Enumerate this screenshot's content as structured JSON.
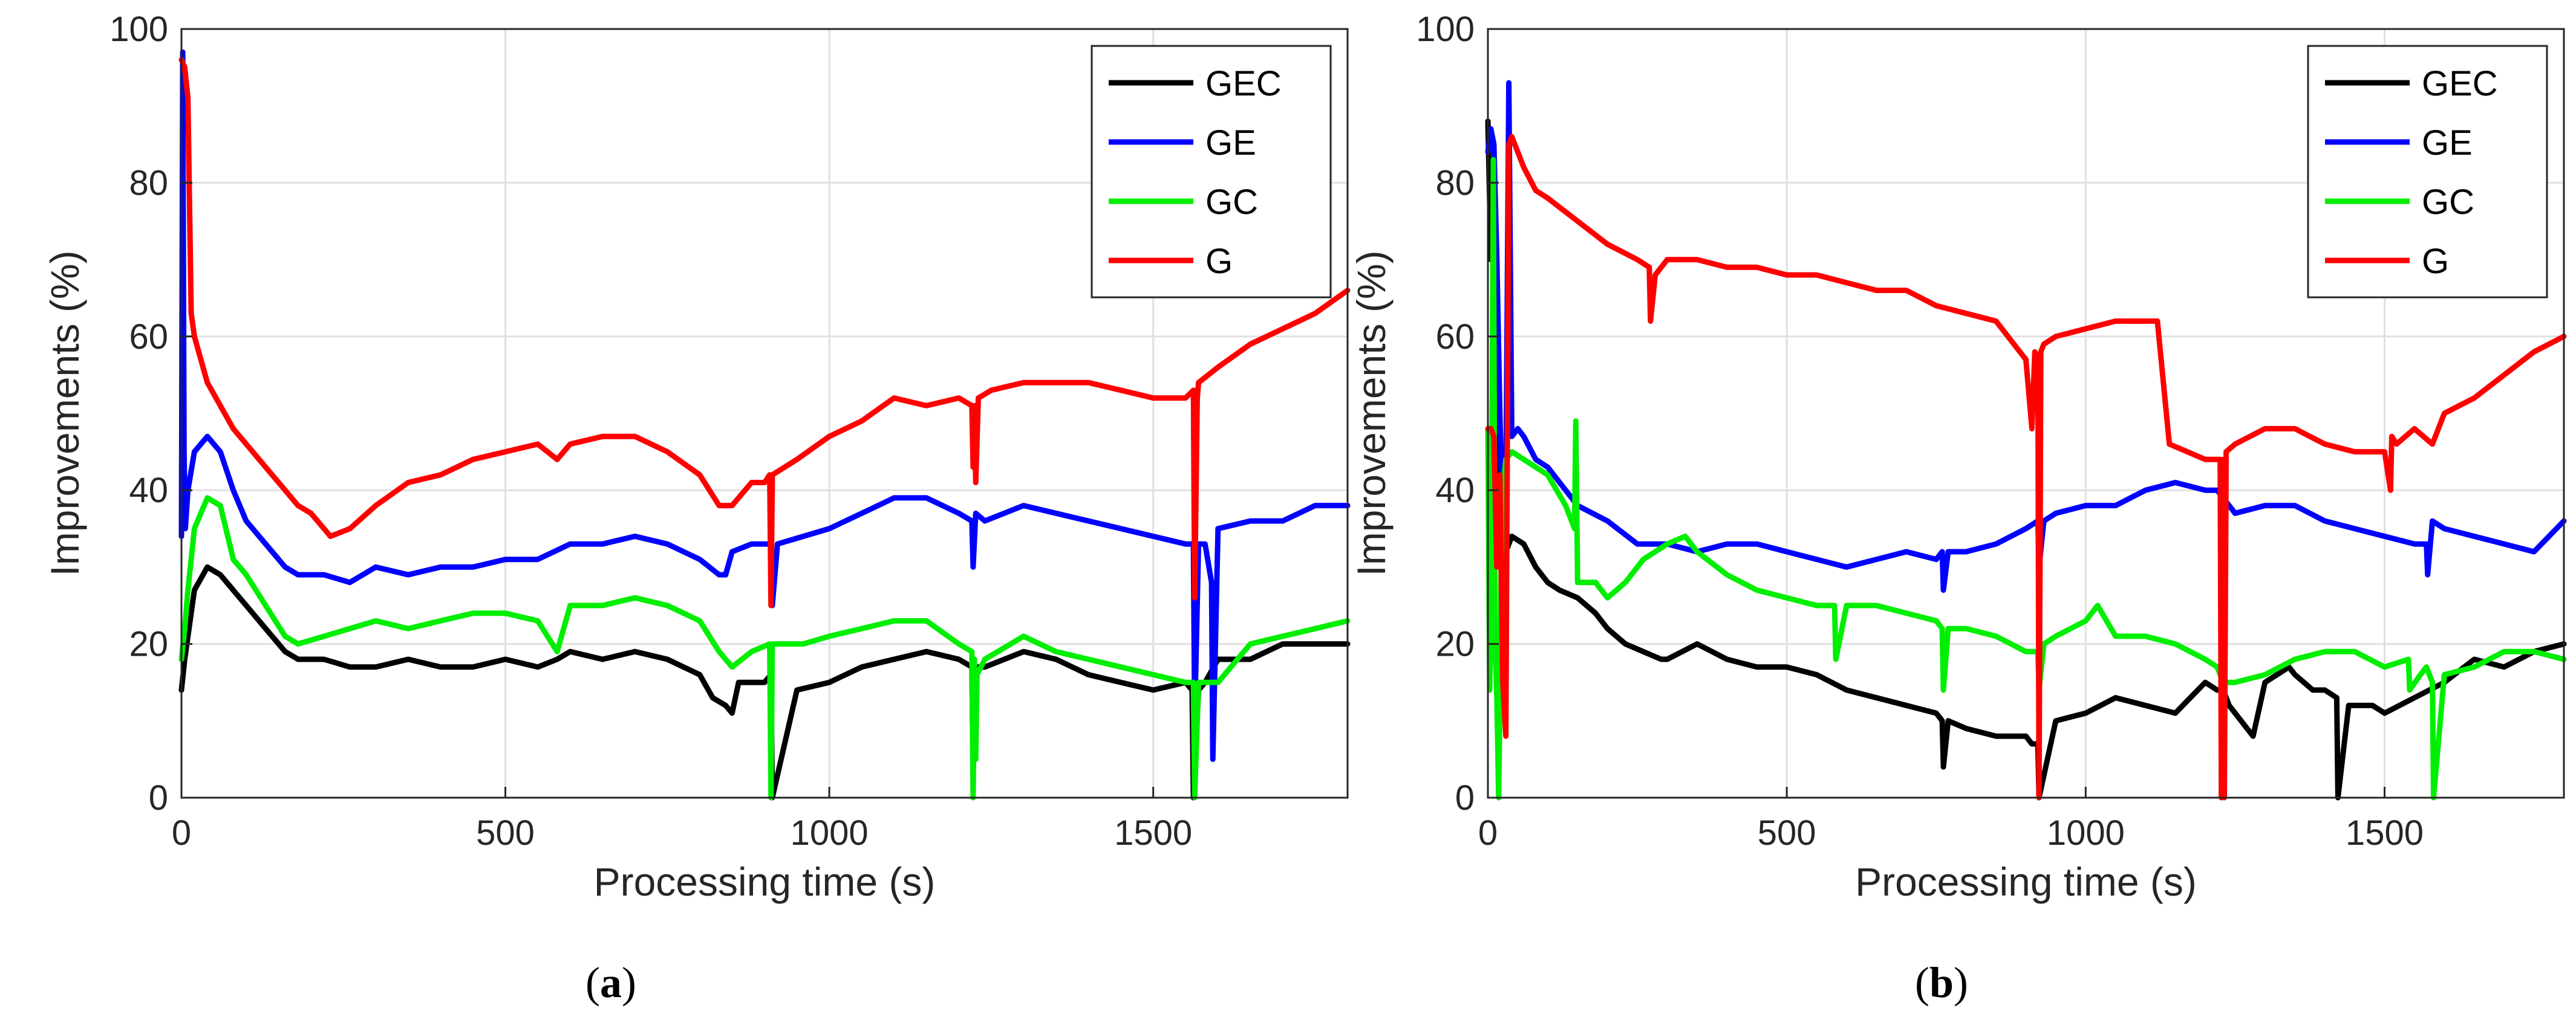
{
  "figure": {
    "captions": [
      {
        "open": "(",
        "letter": "a",
        "close": ")"
      },
      {
        "open": "(",
        "letter": "b",
        "close": ")"
      }
    ]
  },
  "colors": {
    "GEC": "#000000",
    "GE": "#0000ff",
    "GC": "#00ee00",
    "G": "#ff0000",
    "grid": "#e0e0e0",
    "axis": "#262626"
  },
  "chart_data": [
    {
      "type": "line",
      "title": "",
      "xlabel": "Processing time (s)",
      "ylabel": "Improvements (%)",
      "xlim": [
        0,
        1800
      ],
      "ylim": [
        0,
        100
      ],
      "xticks": [
        0,
        500,
        1000,
        1500
      ],
      "yticks": [
        0,
        20,
        40,
        60,
        80,
        100
      ],
      "grid": true,
      "legend_position": "top-right",
      "series": [
        {
          "name": "GEC",
          "color": "#000000",
          "x": [
            0,
            5,
            10,
            20,
            40,
            60,
            80,
            100,
            130,
            160,
            180,
            220,
            260,
            300,
            350,
            400,
            450,
            500,
            550,
            580,
            600,
            650,
            700,
            750,
            800,
            820,
            840,
            850,
            860,
            900,
            910,
            912,
            950,
            1000,
            1050,
            1100,
            1150,
            1200,
            1220,
            1222,
            1226,
            1230,
            1240,
            1300,
            1350,
            1400,
            1450,
            1500,
            1550,
            1560,
            1562,
            1570,
            1580,
            1600,
            1650,
            1700,
            1750,
            1800
          ],
          "y": [
            14,
            18,
            21,
            27,
            30,
            29,
            27,
            25,
            22,
            19,
            18,
            18,
            17,
            17,
            18,
            17,
            17,
            18,
            17,
            18,
            19,
            18,
            19,
            18,
            16,
            13,
            12,
            11,
            15,
            15,
            16,
            0,
            14,
            15,
            17,
            18,
            19,
            18,
            17,
            3,
            16,
            17,
            17,
            19,
            18,
            16,
            15,
            14,
            15,
            14,
            0,
            14,
            15,
            18,
            18,
            20,
            20,
            20
          ]
        },
        {
          "name": "GE",
          "color": "#0000ff",
          "x": [
            0,
            2,
            4,
            6,
            10,
            20,
            40,
            60,
            80,
            100,
            130,
            160,
            180,
            220,
            260,
            300,
            350,
            400,
            450,
            500,
            550,
            600,
            650,
            700,
            750,
            800,
            830,
            840,
            850,
            880,
            910,
            912,
            920,
            960,
            1000,
            1050,
            1100,
            1150,
            1200,
            1220,
            1222,
            1226,
            1240,
            1300,
            1350,
            1400,
            1450,
            1500,
            1550,
            1562,
            1564,
            1570,
            1580,
            1590,
            1592,
            1600,
            1650,
            1700,
            1750,
            1800
          ],
          "y": [
            34,
            97,
            45,
            35,
            40,
            45,
            47,
            45,
            40,
            36,
            33,
            30,
            29,
            29,
            28,
            30,
            29,
            30,
            30,
            31,
            31,
            33,
            33,
            34,
            33,
            31,
            29,
            29,
            32,
            33,
            33,
            25,
            33,
            34,
            35,
            37,
            39,
            39,
            37,
            36,
            30,
            37,
            36,
            38,
            37,
            36,
            35,
            34,
            33,
            33,
            10,
            33,
            33,
            28,
            5,
            35,
            36,
            36,
            38,
            38
          ]
        },
        {
          "name": "GC",
          "color": "#00ee00",
          "x": [
            0,
            5,
            10,
            20,
            40,
            60,
            80,
            100,
            130,
            160,
            180,
            220,
            260,
            300,
            350,
            400,
            450,
            500,
            550,
            580,
            600,
            650,
            700,
            750,
            800,
            830,
            840,
            850,
            880,
            908,
            910,
            912,
            960,
            1000,
            1050,
            1100,
            1150,
            1200,
            1220,
            1222,
            1224,
            1226,
            1228,
            1240,
            1300,
            1350,
            1400,
            1450,
            1500,
            1550,
            1562,
            1564,
            1570,
            1600,
            1650,
            1700,
            1750,
            1800
          ],
          "y": [
            18,
            22,
            27,
            35,
            39,
            38,
            31,
            29,
            25,
            21,
            20,
            21,
            22,
            23,
            22,
            23,
            24,
            24,
            23,
            19,
            25,
            25,
            26,
            25,
            23,
            19,
            18,
            17,
            19,
            20,
            0,
            20,
            20,
            21,
            22,
            23,
            23,
            20,
            19,
            0,
            18,
            5,
            16,
            18,
            21,
            19,
            18,
            17,
            16,
            15,
            15,
            0,
            15,
            15,
            20,
            21,
            22,
            23
          ]
        },
        {
          "name": "G",
          "color": "#ff0000",
          "x": [
            0,
            5,
            10,
            15,
            20,
            30,
            40,
            60,
            80,
            100,
            120,
            150,
            180,
            200,
            230,
            260,
            300,
            350,
            400,
            450,
            500,
            550,
            580,
            600,
            650,
            700,
            750,
            800,
            830,
            850,
            880,
            900,
            908,
            910,
            912,
            950,
            1000,
            1050,
            1100,
            1150,
            1200,
            1220,
            1222,
            1224,
            1226,
            1230,
            1250,
            1300,
            1350,
            1400,
            1450,
            1500,
            1550,
            1562,
            1564,
            1568,
            1570,
            1600,
            1650,
            1700,
            1750,
            1800
          ],
          "y": [
            96,
            95,
            91,
            63,
            60,
            57,
            54,
            51,
            48,
            46,
            44,
            41,
            38,
            37,
            34,
            35,
            38,
            41,
            42,
            44,
            45,
            46,
            44,
            46,
            47,
            47,
            45,
            42,
            38,
            38,
            41,
            41,
            42,
            25,
            42,
            44,
            47,
            49,
            52,
            51,
            52,
            51,
            43,
            51,
            41,
            52,
            53,
            54,
            54,
            54,
            53,
            52,
            52,
            53,
            26,
            52,
            54,
            56,
            59,
            61,
            63,
            66
          ]
        }
      ]
    },
    {
      "type": "line",
      "title": "",
      "xlabel": "Processing time (s)",
      "ylabel": "Improvements (%)",
      "xlim": [
        0,
        1800
      ],
      "ylim": [
        0,
        100
      ],
      "xticks": [
        0,
        500,
        1000,
        1500
      ],
      "yticks": [
        0,
        20,
        40,
        60,
        80,
        100
      ],
      "grid": true,
      "legend_position": "top-right",
      "series": [
        {
          "name": "GEC",
          "color": "#000000",
          "x": [
            0,
            5,
            10,
            15,
            20,
            25,
            30,
            40,
            60,
            80,
            100,
            120,
            150,
            180,
            200,
            230,
            260,
            290,
            300,
            350,
            400,
            450,
            500,
            550,
            600,
            650,
            700,
            750,
            760,
            762,
            770,
            800,
            850,
            900,
            910,
            920,
            922,
            950,
            1000,
            1050,
            1100,
            1150,
            1200,
            1220,
            1230,
            1240,
            1280,
            1300,
            1340,
            1350,
            1380,
            1400,
            1420,
            1422,
            1440,
            1480,
            1500,
            1550,
            1600,
            1650,
            1700,
            1750,
            1800
          ],
          "y": [
            88,
            70,
            80,
            60,
            40,
            30,
            32,
            34,
            33,
            30,
            28,
            27,
            26,
            24,
            22,
            20,
            19,
            18,
            18,
            20,
            18,
            17,
            17,
            16,
            14,
            13,
            12,
            11,
            10,
            4,
            10,
            9,
            8,
            8,
            7,
            7,
            0,
            10,
            11,
            13,
            12,
            11,
            15,
            14,
            14,
            12,
            8,
            15,
            17,
            16,
            14,
            14,
            13,
            0,
            12,
            12,
            11,
            13,
            15,
            18,
            17,
            19,
            20
          ]
        },
        {
          "name": "GE",
          "color": "#0000ff",
          "x": [
            0,
            5,
            10,
            15,
            20,
            25,
            30,
            35,
            40,
            50,
            60,
            80,
            100,
            150,
            200,
            250,
            300,
            350,
            400,
            450,
            500,
            550,
            600,
            650,
            700,
            750,
            760,
            762,
            770,
            800,
            850,
            900,
            920,
            922,
            930,
            950,
            1000,
            1050,
            1100,
            1150,
            1200,
            1220,
            1250,
            1300,
            1350,
            1400,
            1450,
            1500,
            1550,
            1570,
            1572,
            1580,
            1600,
            1650,
            1700,
            1750,
            1800
          ],
          "y": [
            84,
            87,
            85,
            70,
            50,
            35,
            40,
            93,
            47,
            48,
            47,
            44,
            43,
            38,
            36,
            33,
            33,
            32,
            33,
            33,
            32,
            31,
            30,
            31,
            32,
            31,
            32,
            27,
            32,
            32,
            33,
            35,
            36,
            30,
            36,
            37,
            38,
            38,
            40,
            41,
            40,
            40,
            37,
            38,
            38,
            36,
            35,
            34,
            33,
            33,
            29,
            36,
            35,
            34,
            33,
            32,
            36
          ]
        },
        {
          "name": "GC",
          "color": "#00ee00",
          "x": [
            0,
            3,
            6,
            9,
            12,
            15,
            18,
            20,
            22,
            25,
            30,
            40,
            60,
            80,
            100,
            130,
            145,
            147,
            150,
            180,
            200,
            230,
            260,
            300,
            330,
            350,
            400,
            450,
            500,
            550,
            580,
            582,
            600,
            650,
            700,
            750,
            760,
            762,
            770,
            800,
            850,
            900,
            920,
            922,
            930,
            950,
            1000,
            1020,
            1050,
            1100,
            1150,
            1200,
            1220,
            1230,
            1250,
            1300,
            1350,
            1400,
            1450,
            1500,
            1540,
            1542,
            1560,
            1570,
            1580,
            1582,
            1600,
            1650,
            1700,
            1750,
            1800
          ],
          "y": [
            48,
            14,
            30,
            83,
            20,
            13,
            0,
            12,
            30,
            40,
            44,
            45,
            44,
            43,
            42,
            38,
            35,
            49,
            28,
            28,
            26,
            28,
            31,
            33,
            34,
            32,
            29,
            27,
            26,
            25,
            25,
            18,
            25,
            25,
            24,
            23,
            22,
            14,
            22,
            22,
            21,
            19,
            19,
            14,
            20,
            21,
            23,
            25,
            21,
            21,
            20,
            18,
            17,
            15,
            15,
            16,
            18,
            19,
            19,
            17,
            18,
            14,
            16,
            17,
            15,
            0,
            16,
            17,
            19,
            19,
            18
          ]
        },
        {
          "name": "G",
          "color": "#ff0000",
          "x": [
            0,
            5,
            10,
            15,
            20,
            25,
            30,
            35,
            40,
            50,
            60,
            80,
            100,
            150,
            200,
            250,
            270,
            272,
            280,
            300,
            350,
            400,
            450,
            500,
            550,
            600,
            650,
            700,
            750,
            800,
            850,
            900,
            910,
            915,
            920,
            922,
            925,
            930,
            950,
            1000,
            1050,
            1100,
            1120,
            1140,
            1200,
            1225,
            1227,
            1229,
            1232,
            1235,
            1250,
            1300,
            1350,
            1400,
            1450,
            1500,
            1510,
            1512,
            1520,
            1550,
            1580,
            1600,
            1650,
            1700,
            1750,
            1800
          ],
          "y": [
            48,
            48,
            47,
            30,
            42,
            15,
            8,
            85,
            86,
            84,
            82,
            79,
            78,
            75,
            72,
            70,
            69,
            62,
            68,
            70,
            70,
            69,
            69,
            68,
            68,
            67,
            66,
            66,
            64,
            63,
            62,
            57,
            48,
            58,
            57,
            0,
            58,
            59,
            60,
            61,
            62,
            62,
            62,
            46,
            44,
            44,
            0,
            44,
            0,
            45,
            46,
            48,
            48,
            46,
            45,
            45,
            40,
            47,
            46,
            48,
            46,
            50,
            52,
            55,
            58,
            60
          ]
        }
      ]
    }
  ]
}
